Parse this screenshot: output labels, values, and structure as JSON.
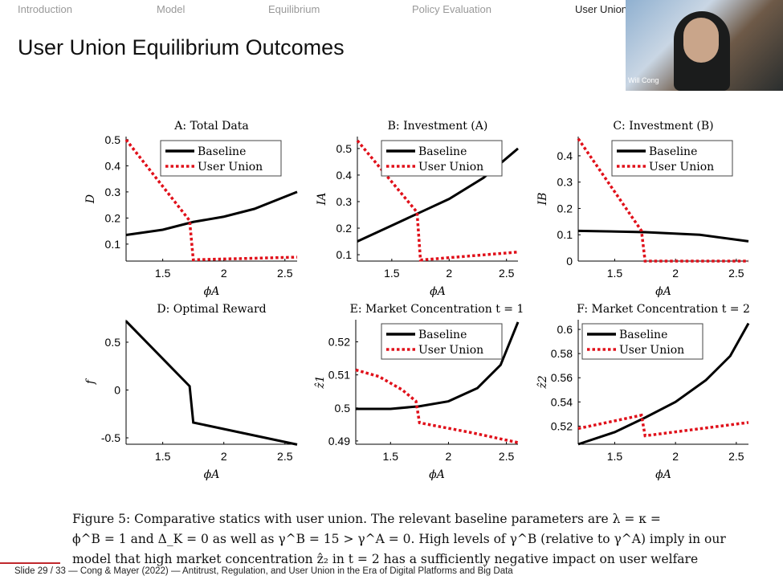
{
  "nav": [
    "Introduction",
    "Model",
    "Equilibrium",
    "Policy Evaluation",
    "User Union"
  ],
  "title": "User Union Equilibrium Outcomes",
  "webcam": {
    "name": "Will Cong"
  },
  "caption": [
    "Figure 5: Comparative statics with user union. The relevant baseline parameters are λ = κ =",
    "ϕ^B = 1 and Δ_K = 0 as well as γ^B = 15 > γ^A = 0. High levels of γ^B (relative to γ^A) imply in our",
    "model that high market concentration ẑ₂ in t = 2 has a sufficiently negative impact on user welfare"
  ],
  "footer": "Slide 29 / 33  —  Cong & Mayer (2022)  —  Antitrust, Regulation, and User Union in the Era of Digital Platforms and Big Data",
  "colors": {
    "baseline": "#000000",
    "user_union": "#e0101a"
  },
  "chart_data": [
    {
      "type": "line",
      "title": "A: Total Data",
      "xlabel": "ϕA",
      "ylabel": "D",
      "xlim": [
        1.2,
        2.6
      ],
      "ylim": [
        0.035,
        0.512
      ],
      "xticks": [
        1.5,
        2,
        2.5
      ],
      "yticks": [
        0.1,
        0.2,
        0.3,
        0.4,
        0.5
      ],
      "legend": "top-right",
      "series": [
        {
          "name": "Baseline",
          "x": [
            1.2,
            1.5,
            1.75,
            2,
            2.25,
            2.6
          ],
          "y": [
            0.135,
            0.155,
            0.185,
            0.205,
            0.235,
            0.3
          ]
        },
        {
          "name": "User Union",
          "x": [
            1.2,
            1.72,
            1.75,
            2.6
          ],
          "y": [
            0.5,
            0.19,
            0.04,
            0.05
          ]
        }
      ]
    },
    {
      "type": "line",
      "title": "B: Investment (A)",
      "xlabel": "ϕA",
      "ylabel": "IA",
      "xlim": [
        1.2,
        2.6
      ],
      "ylim": [
        0.076,
        0.545
      ],
      "xticks": [
        1.5,
        2,
        2.5
      ],
      "yticks": [
        0.1,
        0.2,
        0.3,
        0.4,
        0.5
      ],
      "legend": "top-right",
      "series": [
        {
          "name": "Baseline",
          "x": [
            1.2,
            1.5,
            1.75,
            2,
            2.3,
            2.6
          ],
          "y": [
            0.15,
            0.21,
            0.26,
            0.31,
            0.39,
            0.5
          ]
        },
        {
          "name": "User Union",
          "x": [
            1.2,
            1.72,
            1.75,
            2.6
          ],
          "y": [
            0.53,
            0.26,
            0.08,
            0.11
          ]
        }
      ]
    },
    {
      "type": "line",
      "title": "C: Investment (B)",
      "xlabel": "ϕA",
      "ylabel": "IB",
      "xlim": [
        1.2,
        2.6
      ],
      "ylim": [
        0,
        0.473
      ],
      "xticks": [
        1.5,
        2,
        2.5
      ],
      "yticks": [
        0,
        0.1,
        0.2,
        0.3,
        0.4
      ],
      "legend": "top-right",
      "series": [
        {
          "name": "Baseline",
          "x": [
            1.2,
            1.75,
            2.2,
            2.6
          ],
          "y": [
            0.115,
            0.11,
            0.1,
            0.075
          ]
        },
        {
          "name": "User Union",
          "x": [
            1.2,
            1.72,
            1.75,
            2.6
          ],
          "y": [
            0.465,
            0.115,
            0,
            0
          ]
        }
      ]
    },
    {
      "type": "line",
      "title": "D: Optimal Reward",
      "xlabel": "ϕA",
      "ylabel": "f",
      "xlim": [
        1.2,
        2.6
      ],
      "ylim": [
        -0.567,
        0.735
      ],
      "xticks": [
        1.5,
        2,
        2.5
      ],
      "yticks": [
        -0.5,
        0,
        0.5
      ],
      "legend": "none",
      "series": [
        {
          "name": "Baseline",
          "x": [
            1.2,
            1.72,
            1.75,
            2.6
          ],
          "y": [
            0.72,
            0.04,
            -0.34,
            -0.57
          ]
        }
      ]
    },
    {
      "type": "line",
      "title": "E: Market Concentration t = 1",
      "xlabel": "ϕA",
      "ylabel": "ẑ1",
      "xlim": [
        1.2,
        2.6
      ],
      "ylim": [
        0.489,
        0.5267
      ],
      "xticks": [
        1.5,
        2,
        2.5
      ],
      "yticks": [
        0.49,
        0.5,
        0.51,
        0.52
      ],
      "legend": "top-right",
      "series": [
        {
          "name": "Baseline",
          "x": [
            1.2,
            1.5,
            1.75,
            2,
            2.25,
            2.45,
            2.6
          ],
          "y": [
            0.4997,
            0.4997,
            0.5005,
            0.502,
            0.506,
            0.513,
            0.526
          ]
        },
        {
          "name": "User Union",
          "x": [
            1.2,
            1.4,
            1.6,
            1.72,
            1.75,
            2.2,
            2.6
          ],
          "y": [
            0.5115,
            0.5095,
            0.5055,
            0.502,
            0.4955,
            0.4925,
            0.4895
          ]
        }
      ]
    },
    {
      "type": "line",
      "title": "F: Market Concentration t = 2",
      "xlabel": "ϕA",
      "ylabel": "ẑ2",
      "xlim": [
        1.2,
        2.6
      ],
      "ylim": [
        0.505,
        0.608
      ],
      "xticks": [
        1.5,
        2,
        2.5
      ],
      "yticks": [
        0.52,
        0.54,
        0.56,
        0.58,
        0.6
      ],
      "legend": "top-left",
      "series": [
        {
          "name": "Baseline",
          "x": [
            1.2,
            1.5,
            1.75,
            2,
            2.25,
            2.45,
            2.6
          ],
          "y": [
            0.505,
            0.515,
            0.527,
            0.54,
            0.558,
            0.578,
            0.605
          ]
        },
        {
          "name": "User Union",
          "x": [
            1.2,
            1.72,
            1.75,
            2.6
          ],
          "y": [
            0.518,
            0.529,
            0.512,
            0.523
          ]
        }
      ]
    }
  ]
}
